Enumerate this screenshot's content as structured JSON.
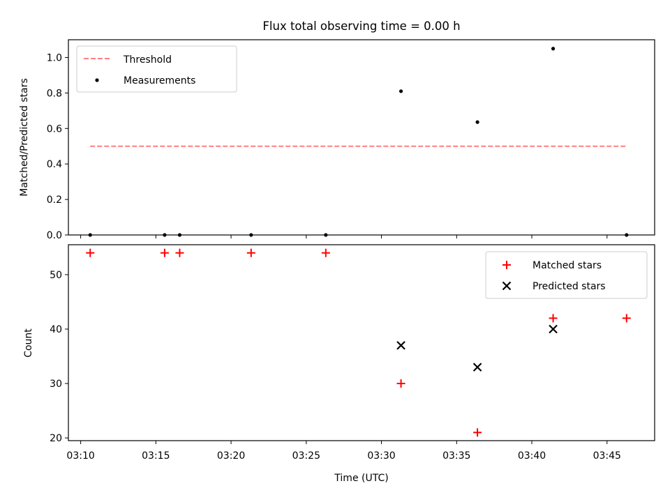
{
  "chart_data": [
    {
      "type": "scatter",
      "title": "Flux total observing time = 0.00 h",
      "ylabel": "Matched/Predicted stars",
      "ylim": [
        0.0,
        1.1
      ],
      "yticks": [
        "0.0",
        "0.2",
        "0.4",
        "0.6",
        "0.8",
        "1.0"
      ],
      "legend_position": "top-left",
      "threshold": {
        "name": "Threshold",
        "value": 0.5,
        "x_range": [
          "03:10:38",
          "03:46:18"
        ],
        "color": "#ff7f7f",
        "style": "dashed"
      },
      "series": [
        {
          "name": "Measurements",
          "color": "#000000",
          "marker": "dot",
          "points": [
            {
              "x": "03:10:38",
              "y": 0.0
            },
            {
              "x": "03:15:35",
              "y": 0.0
            },
            {
              "x": "03:16:35",
              "y": 0.0
            },
            {
              "x": "03:21:20",
              "y": 0.0
            },
            {
              "x": "03:26:18",
              "y": 0.0
            },
            {
              "x": "03:31:18",
              "y": 0.81
            },
            {
              "x": "03:36:23",
              "y": 0.636
            },
            {
              "x": "03:41:25",
              "y": 1.05
            },
            {
              "x": "03:46:18",
              "y": 0.0
            }
          ]
        }
      ]
    },
    {
      "type": "scatter",
      "xlabel": "Time (UTC)",
      "ylabel": "Count",
      "ylim": [
        19.5,
        55.5
      ],
      "yticks": [
        "20",
        "30",
        "40",
        "50"
      ],
      "xlim": [
        "03:09:11",
        "03:48:10"
      ],
      "xticks": [
        "03:10",
        "03:15",
        "03:20",
        "03:25",
        "03:30",
        "03:35",
        "03:40",
        "03:45"
      ],
      "legend_position": "top-right",
      "series": [
        {
          "name": "Matched stars",
          "color": "#ff0000",
          "marker": "plus",
          "points": [
            {
              "x": "03:10:38",
              "y": 54
            },
            {
              "x": "03:15:35",
              "y": 54
            },
            {
              "x": "03:16:35",
              "y": 54
            },
            {
              "x": "03:21:20",
              "y": 54
            },
            {
              "x": "03:26:18",
              "y": 54
            },
            {
              "x": "03:31:18",
              "y": 30
            },
            {
              "x": "03:36:23",
              "y": 21
            },
            {
              "x": "03:41:25",
              "y": 42
            },
            {
              "x": "03:46:18",
              "y": 42
            }
          ]
        },
        {
          "name": "Predicted stars",
          "color": "#000000",
          "marker": "x",
          "points": [
            {
              "x": "03:31:18",
              "y": 37
            },
            {
              "x": "03:36:23",
              "y": 33
            },
            {
              "x": "03:41:25",
              "y": 40
            }
          ]
        }
      ]
    }
  ]
}
